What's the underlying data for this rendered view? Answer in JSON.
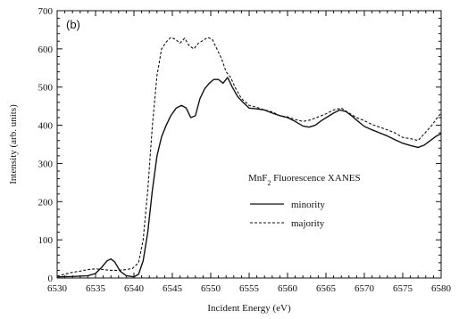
{
  "chart_data": {
    "type": "line",
    "panel_label": "(b)",
    "title": "",
    "xlabel": "Incident Energy (eV)",
    "ylabel": "Intensity (arb. units)",
    "xlim": [
      6530,
      6580
    ],
    "ylim": [
      0,
      700
    ],
    "xticks": [
      6530,
      6535,
      6540,
      6545,
      6550,
      6555,
      6560,
      6565,
      6570,
      6575,
      6580
    ],
    "yticks": [
      0,
      100,
      200,
      300,
      400,
      500,
      600,
      700
    ],
    "grid": false,
    "legend": {
      "title_prefix": "MnF",
      "title_subscript": "2",
      "title_suffix": " Fluorescence XANES",
      "placement": "center-right"
    },
    "series": [
      {
        "name": "minority",
        "style": "solid",
        "color": "#111111",
        "x": [
          6530,
          6532,
          6534,
          6535,
          6535.8,
          6536.5,
          6537,
          6537.5,
          6538.2,
          6539,
          6540,
          6540.6,
          6541.2,
          6541.8,
          6542.4,
          6543,
          6543.6,
          6544.2,
          6544.8,
          6545.5,
          6546.2,
          6546.8,
          6547.4,
          6548,
          6548.6,
          6549.2,
          6549.8,
          6550.4,
          6551,
          6551.6,
          6552.2,
          6552.8,
          6553.5,
          6554.2,
          6555,
          6556,
          6557,
          6558,
          6559,
          6560,
          6561,
          6562,
          6562.8,
          6563.6,
          6564.4,
          6565.2,
          6566,
          6566.8,
          6567.6,
          6568.4,
          6569.2,
          6570,
          6571,
          6572,
          6573,
          6574,
          6575,
          6576,
          6577,
          6577.8,
          6578.6,
          6579.4,
          6580
        ],
        "values": [
          3,
          4,
          6,
          12,
          28,
          45,
          50,
          42,
          18,
          6,
          3,
          10,
          45,
          120,
          230,
          320,
          370,
          400,
          425,
          445,
          452,
          445,
          420,
          425,
          470,
          495,
          510,
          520,
          520,
          510,
          525,
          500,
          475,
          460,
          445,
          443,
          440,
          432,
          425,
          420,
          410,
          398,
          395,
          400,
          412,
          422,
          432,
          440,
          436,
          424,
          410,
          397,
          388,
          380,
          372,
          362,
          353,
          347,
          342,
          348,
          360,
          372,
          378
        ]
      },
      {
        "name": "majority",
        "style": "dashed",
        "color": "#111111",
        "x": [
          6530,
          6531,
          6532,
          6533,
          6534,
          6535,
          6536,
          6537,
          6538,
          6539,
          6539.8,
          6540.6,
          6541.2,
          6541.8,
          6542.4,
          6543,
          6543.6,
          6544.2,
          6544.8,
          6545.4,
          6546,
          6546.6,
          6547.2,
          6547.8,
          6548.4,
          6549,
          6549.6,
          6550.2,
          6550.8,
          6551.4,
          6552,
          6552.6,
          6553.2,
          6554,
          6555,
          6556,
          6557,
          6558,
          6559,
          6560,
          6561,
          6562,
          6563,
          6564,
          6565,
          6566,
          6567,
          6568,
          6569,
          6570,
          6571,
          6572,
          6573,
          6574,
          6575,
          6576,
          6577,
          6578,
          6578.8,
          6579.5,
          6580
        ],
        "values": [
          5,
          10,
          15,
          18,
          22,
          24,
          22,
          20,
          20,
          22,
          25,
          40,
          100,
          230,
          400,
          530,
          600,
          618,
          630,
          625,
          615,
          628,
          608,
          600,
          615,
          622,
          630,
          625,
          600,
          575,
          540,
          525,
          498,
          470,
          452,
          447,
          440,
          435,
          425,
          422,
          415,
          410,
          414,
          422,
          430,
          440,
          445,
          432,
          420,
          412,
          402,
          395,
          388,
          380,
          368,
          365,
          360,
          382,
          400,
          420,
          432
        ]
      }
    ]
  }
}
